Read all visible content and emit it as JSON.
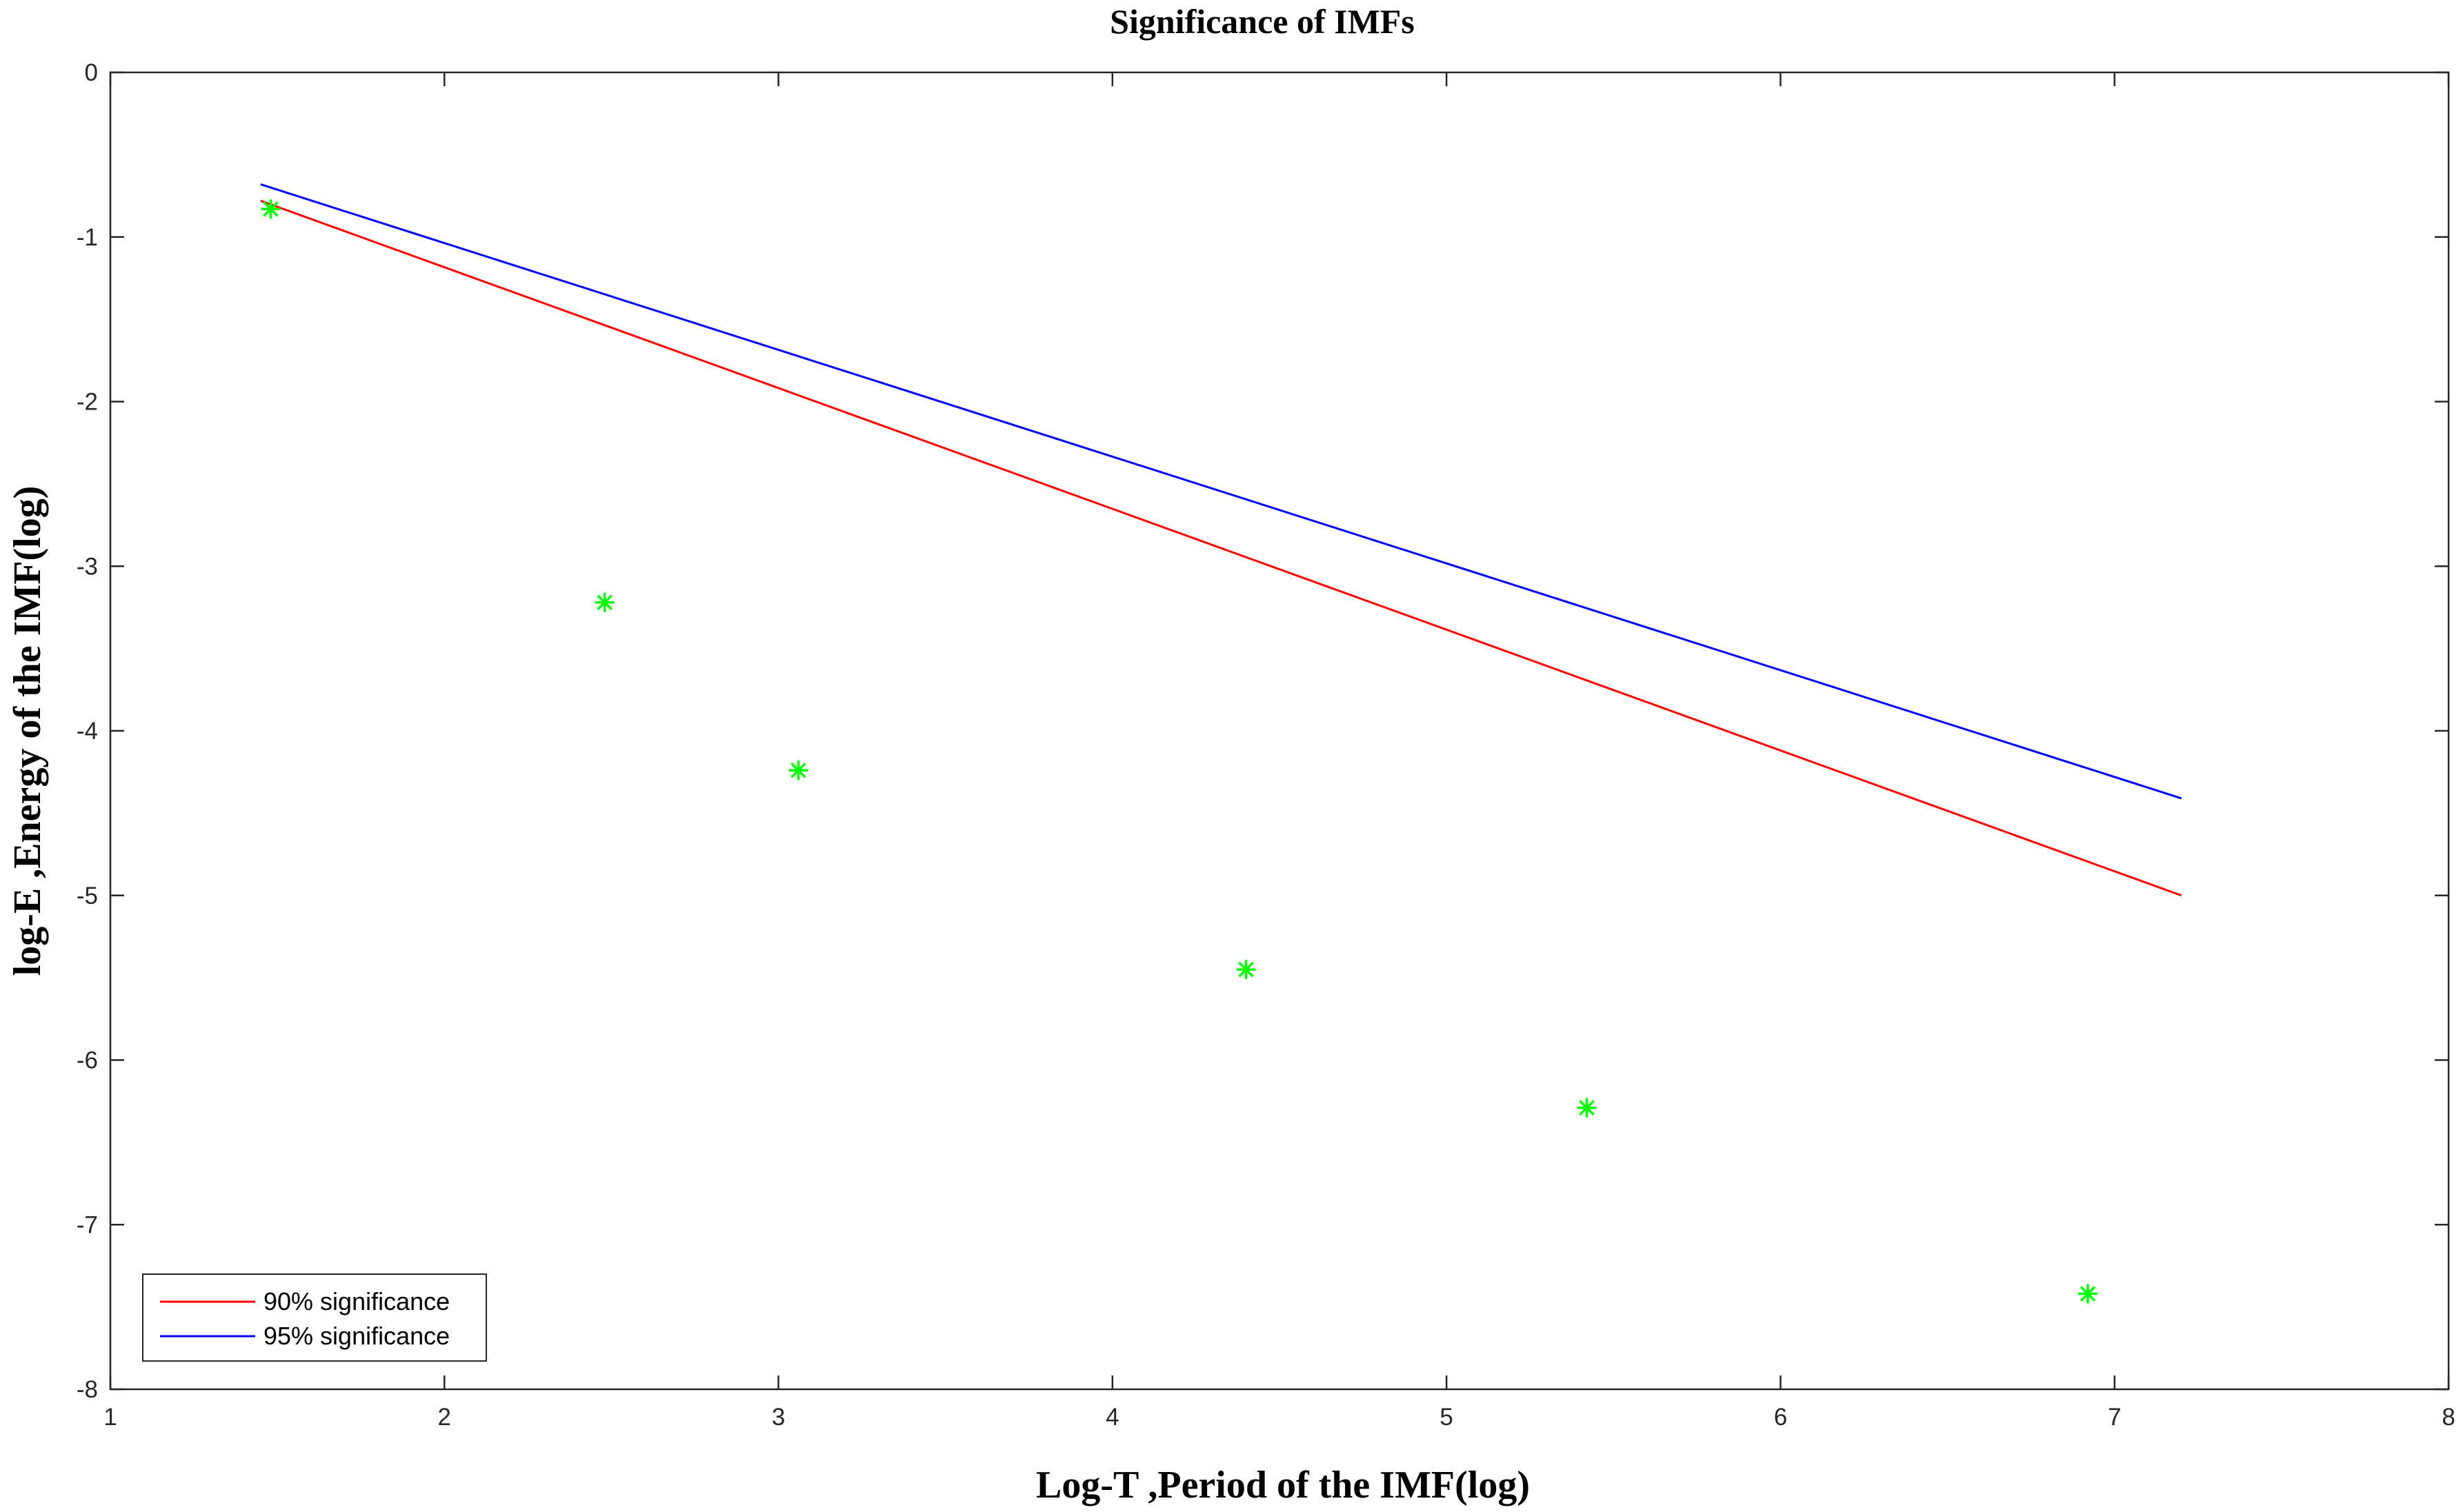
{
  "chart_data": {
    "type": "line",
    "title": "Significance of IMFs",
    "xlabel": "Log-T ,Period of the IMF(log)",
    "ylabel": "log-E ,Energy of the IMF(log)",
    "xlim": [
      1,
      8
    ],
    "ylim": [
      -8,
      0
    ],
    "xticks": [
      "1",
      "2",
      "3",
      "4",
      "5",
      "6",
      "7",
      "8"
    ],
    "yticks": [
      "0",
      "-1",
      "-2",
      "-3",
      "-4",
      "-5",
      "-6",
      "-7",
      "-8"
    ],
    "grid": false,
    "legend_position": "bottom-left",
    "series": [
      {
        "name": "90% significance",
        "kind": "line",
        "color": "#ff0000",
        "x": [
          1.45,
          7.2
        ],
        "y": [
          -0.78,
          -5.0
        ]
      },
      {
        "name": "95% significance",
        "kind": "line",
        "color": "#0000ff",
        "x": [
          1.45,
          7.2
        ],
        "y": [
          -0.68,
          -4.41
        ]
      },
      {
        "kind": "scatter",
        "marker": "asterisk",
        "color": "#00ff00",
        "x": [
          1.48,
          2.48,
          3.06,
          4.4,
          5.42,
          6.92
        ],
        "y": [
          -0.83,
          -3.22,
          -4.24,
          -5.45,
          -6.29,
          -7.42
        ]
      }
    ]
  }
}
